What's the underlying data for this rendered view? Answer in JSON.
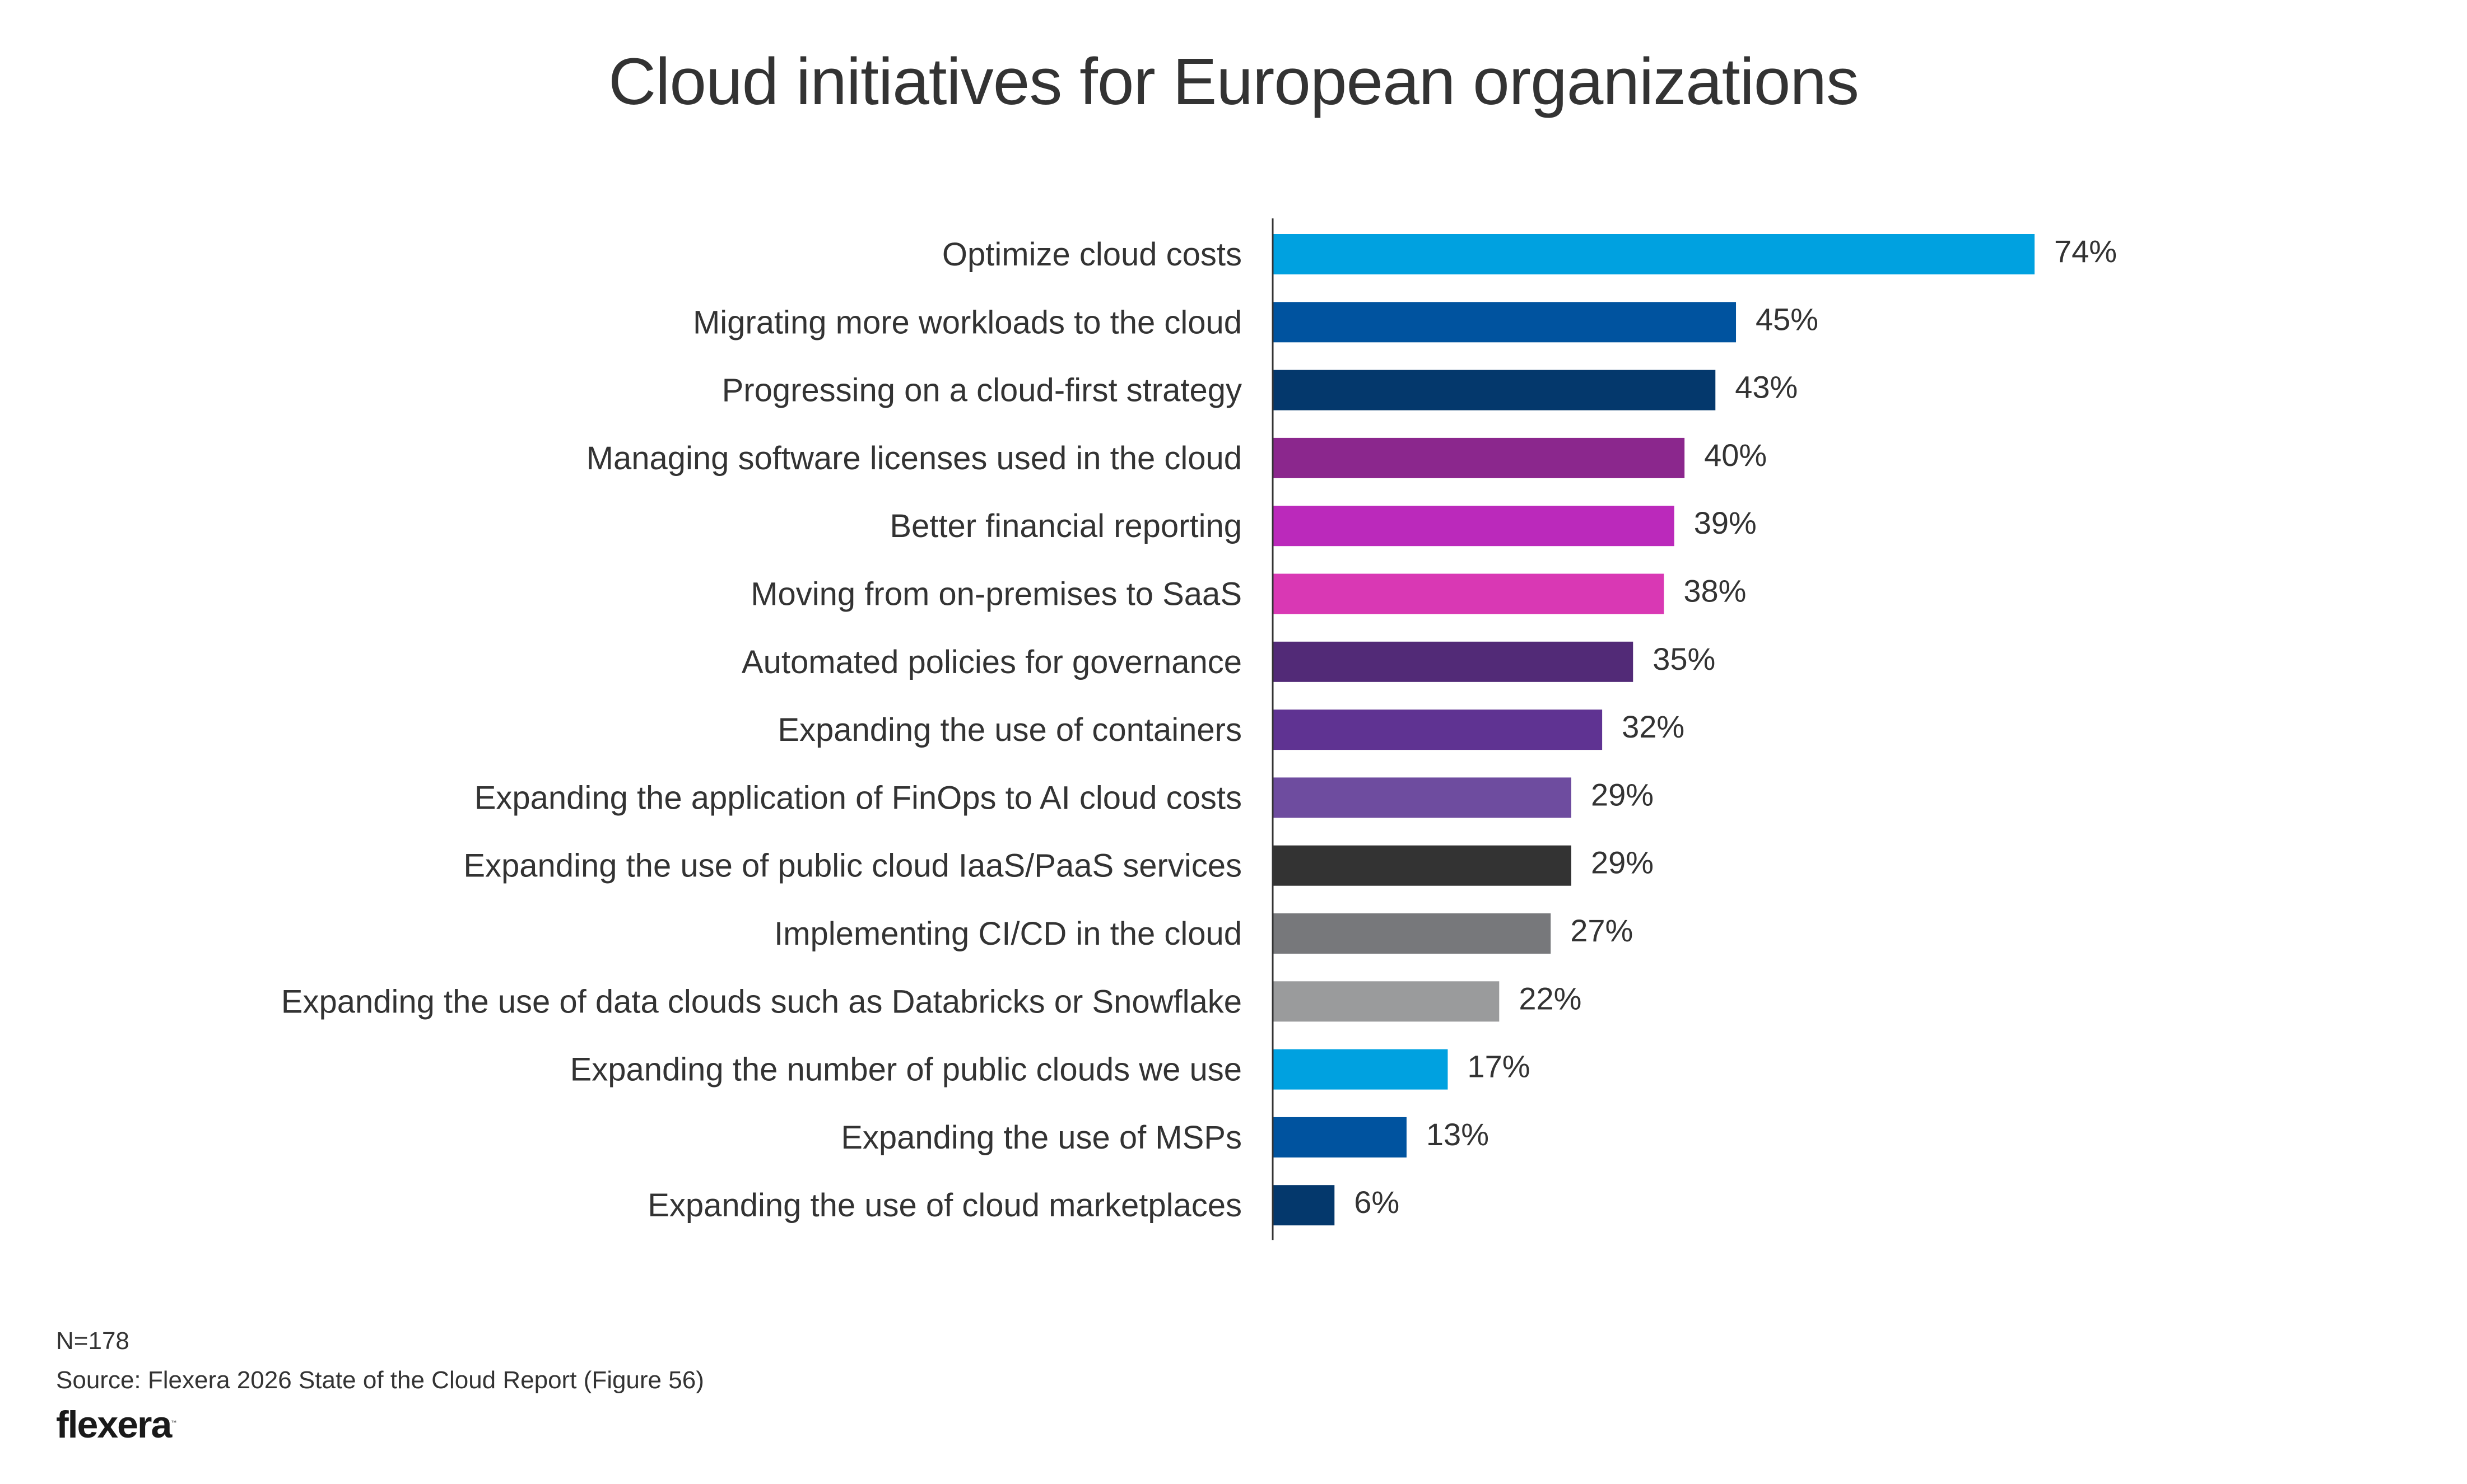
{
  "chart_data": {
    "type": "bar",
    "orientation": "horizontal",
    "title": "Cloud initiatives for European organizations",
    "xlabel": "",
    "ylabel": "",
    "xlim": [
      0,
      74
    ],
    "grid": false,
    "legend": "none",
    "value_suffix": "%",
    "categories": [
      "Optimize cloud costs",
      "Migrating more workloads to the cloud",
      "Progressing on a cloud-first strategy",
      "Managing software licenses used in the cloud",
      "Better financial reporting",
      "Moving from on-premises to SaaS",
      "Automated policies for governance",
      "Expanding the use of containers",
      "Expanding the application of FinOps to AI cloud costs",
      "Expanding the use of public cloud IaaS/PaaS services",
      "Implementing CI/CD in the cloud",
      "Expanding the use of data clouds such as Databricks or Snowflake",
      "Expanding the number of public clouds we use",
      "Expanding the use of MSPs",
      "Expanding the use of cloud marketplaces"
    ],
    "values": [
      74,
      45,
      43,
      40,
      39,
      38,
      35,
      32,
      29,
      29,
      27,
      22,
      17,
      13,
      6
    ],
    "value_labels": [
      "74%",
      "45%",
      "43%",
      "40%",
      "39%",
      "38%",
      "35%",
      "32%",
      "29%",
      "29%",
      "27%",
      "22%",
      "17%",
      "13%",
      "6%"
    ],
    "colors": [
      "#00a1e0",
      "#00539f",
      "#04386c",
      "#8b278d",
      "#bb29bb",
      "#d938b4",
      "#522a77",
      "#5f3392",
      "#6e4c9f",
      "#333333",
      "#77787b",
      "#9a9b9c",
      "#00a1e0",
      "#00539f",
      "#04386c"
    ]
  },
  "footer": {
    "sample_size": "N=178",
    "source": "Source: Flexera 2026 State of the Cloud Report (Figure 56)",
    "logo_text": "flexera",
    "logo_mark": "™"
  },
  "colors": {
    "text": "#333333",
    "axis": "#333333",
    "background": "#ffffff"
  }
}
